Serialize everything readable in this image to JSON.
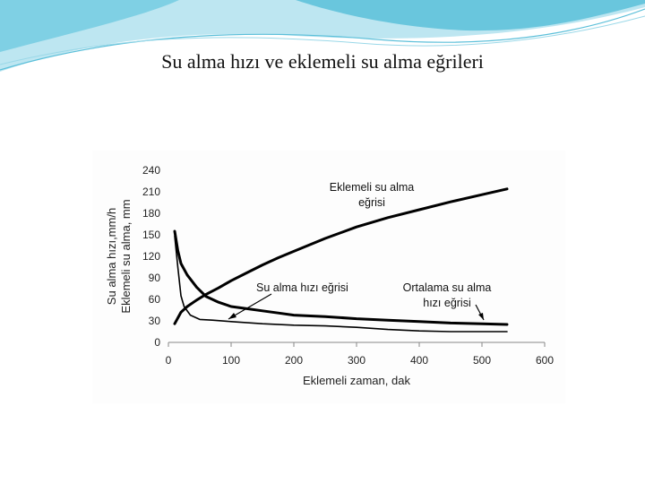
{
  "slide": {
    "title": "Su alma hızı ve eklemeli su alma eğrileri",
    "colors": {
      "wave_dark": "#5bbfd9",
      "wave_light": "#bde6f1",
      "line": "#000000"
    }
  },
  "chart_data": {
    "type": "line",
    "title": "",
    "xlabel": "Eklemeli zaman, dak",
    "ylabel_lines": [
      "Su alma hızı,mm/h",
      "Eklemeli su alma, mm"
    ],
    "xlim": [
      0,
      600
    ],
    "ylim": [
      0,
      240
    ],
    "x_ticks": [
      0,
      100,
      200,
      300,
      400,
      500,
      600
    ],
    "y_ticks": [
      0,
      30,
      60,
      90,
      120,
      150,
      180,
      210,
      240
    ],
    "grid": false,
    "legend": "none",
    "series": [
      {
        "name": "Eklemeli su alma eğrisi",
        "x": [
          10,
          20,
          30,
          45,
          60,
          80,
          100,
          125,
          150,
          175,
          200,
          250,
          300,
          350,
          400,
          450,
          500,
          540
        ],
        "y": [
          26,
          42,
          50,
          59,
          67,
          76,
          86,
          97,
          108,
          118,
          127,
          145,
          161,
          174,
          185,
          196,
          206,
          214
        ],
        "width": 3
      },
      {
        "name": "Su alma hızı eğrisi",
        "x": [
          10,
          15,
          20,
          30,
          45,
          60,
          80,
          100,
          125,
          150,
          175,
          200,
          250,
          300,
          350,
          400,
          450,
          500,
          540
        ],
        "y": [
          155,
          128,
          110,
          94,
          77,
          64,
          56,
          50,
          47,
          44,
          41,
          38,
          36,
          33,
          31,
          29,
          27,
          26,
          25
        ],
        "width": 3
      },
      {
        "name": "Ortalama su alma hızı eğrisi",
        "x": [
          10,
          15,
          20,
          25,
          35,
          50,
          70,
          100,
          150,
          200,
          250,
          300,
          350,
          400,
          450,
          500,
          540
        ],
        "y": [
          148,
          105,
          65,
          50,
          38,
          32,
          31,
          29,
          26,
          24,
          23,
          21,
          18,
          16,
          15,
          15,
          15
        ],
        "width": 1.6
      }
    ],
    "annotations": [
      {
        "lines": [
          "Eklemeli su alma",
          "eğrisi"
        ]
      },
      {
        "lines": [
          "Su alma hızı eğrisi"
        ]
      },
      {
        "lines": [
          "Ortalama su alma",
          "hızı eğrisi"
        ]
      }
    ]
  }
}
